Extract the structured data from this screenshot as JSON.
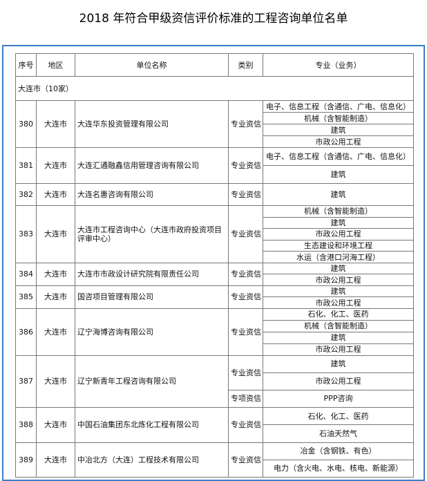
{
  "title": "2018 年符合甲级资信评价标准的工程咨询单位名单",
  "table": {
    "headers": [
      "序号",
      "地区",
      "单位名称",
      "类别",
      "专业（业务）"
    ],
    "section": "大连市（10家）",
    "rows": [
      {
        "id": 380,
        "region": "大连市",
        "name": "大连华东投资管理有限公司",
        "groups": [
          {
            "category": "专业资信",
            "specialties": [
              "电子、信息工程（含通信、广电、信息化）",
              "机械（含智能制造）",
              "建筑",
              "市政公用工程"
            ]
          }
        ]
      },
      {
        "id": 381,
        "region": "大连市",
        "name": "大连汇通融鑫信用管理咨询有限公司",
        "groups": [
          {
            "category": "专业资信",
            "specialties": [
              "电子、信息工程（含通信、广电、信息化）",
              "建筑"
            ]
          }
        ]
      },
      {
        "id": 382,
        "region": "大连市",
        "name": "大连名惠咨询有限公司",
        "groups": [
          {
            "category": "专业资信",
            "specialties": [
              "建筑"
            ]
          }
        ]
      },
      {
        "id": 383,
        "region": "大连市",
        "name": "大连市工程咨询中心（大连市政府投资项目评审中心）",
        "groups": [
          {
            "category": "专业资信",
            "specialties": [
              "机械（含智能制造）",
              "建筑",
              "市政公用工程",
              "生态建设和环境工程",
              "水运（含港口河海工程）"
            ]
          }
        ]
      },
      {
        "id": 384,
        "region": "大连市",
        "name": "大连市市政设计研究院有限责任公司",
        "groups": [
          {
            "category": "专业资信",
            "specialties": [
              "建筑",
              "市政公用工程"
            ]
          }
        ]
      },
      {
        "id": 385,
        "region": "大连市",
        "name": "国咨项目管理有限公司",
        "groups": [
          {
            "category": "专业资信",
            "specialties": [
              "建筑",
              "市政公用工程"
            ]
          }
        ]
      },
      {
        "id": 386,
        "region": "大连市",
        "name": "辽宁海博咨询有限公司",
        "groups": [
          {
            "category": "专业资信",
            "specialties": [
              "石化、化工、医药",
              "机械（含智能制造）",
              "建筑",
              "市政公用工程"
            ]
          }
        ]
      },
      {
        "id": 387,
        "region": "大连市",
        "name": "辽宁新青年工程咨询有限公司",
        "groups": [
          {
            "category": "专业资信",
            "specialties": [
              "建筑",
              "市政公用工程"
            ]
          },
          {
            "category": "专项资信",
            "specialties": [
              "PPP咨询"
            ]
          }
        ]
      },
      {
        "id": 388,
        "region": "大连市",
        "name": "中国石油集团东北炼化工程有限公司",
        "groups": [
          {
            "category": "专业资信",
            "specialties": [
              "石化、化工、医药",
              "石油天然气"
            ]
          }
        ]
      },
      {
        "id": 389,
        "region": "大连市",
        "name": "中冶北方（大连）工程技术有限公司",
        "groups": [
          {
            "category": "专业资信",
            "specialties": [
              "冶金（含钢铁、有色）",
              "电力（含火电、水电、核电、新能源）"
            ]
          }
        ]
      }
    ]
  }
}
